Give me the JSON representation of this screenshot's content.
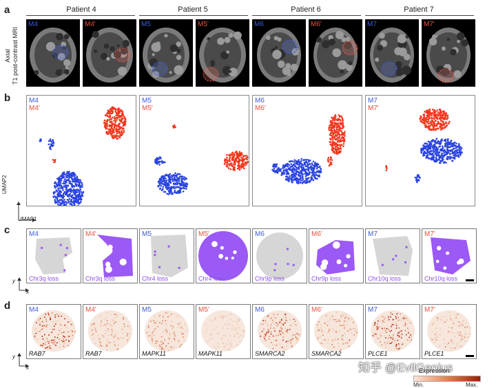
{
  "panel_letters": {
    "a": "a",
    "b": "b",
    "c": "c",
    "d": "d"
  },
  "patients": [
    "Patient 4",
    "Patient 5",
    "Patient 6",
    "Patient 7"
  ],
  "mri_axis_label_line1": "Axial",
  "mri_axis_label_line2": "T1 post-contrast MRI",
  "samples": [
    "M4",
    "M4'",
    "M5",
    "M5'",
    "M6",
    "M6'",
    "M7",
    "M7'"
  ],
  "umap": {
    "xlabel": "UMAP1",
    "ylabel": "UMAP2"
  },
  "cnv_losses": [
    "Chr3q loss",
    "Chr3q loss",
    "Chr4 loss",
    "Chr4 loss",
    "Chr9p loss",
    "Chr9p loss",
    "Chr10q loss",
    "Chr10q loss"
  ],
  "genes": [
    "RAB7",
    "RAB7",
    "MAPK11",
    "MAPK11",
    "SMARCA2",
    "SMARCA2",
    "PLCE1",
    "PLCE1"
  ],
  "spatial_axes": {
    "x": "x",
    "y": "y"
  },
  "legend": {
    "title": "Expression",
    "min": "Min.",
    "max": "Max."
  },
  "watermark": "知乎 @EvilGenius",
  "colors": {
    "primary": "#3b5bdb",
    "recurrence": "#e8503a",
    "cnv_loss": "#8a4ee6",
    "expression_low": "#fbe6d8",
    "expression_high": "#a51c0a",
    "tissue_gray": "#d6d6d6"
  }
}
